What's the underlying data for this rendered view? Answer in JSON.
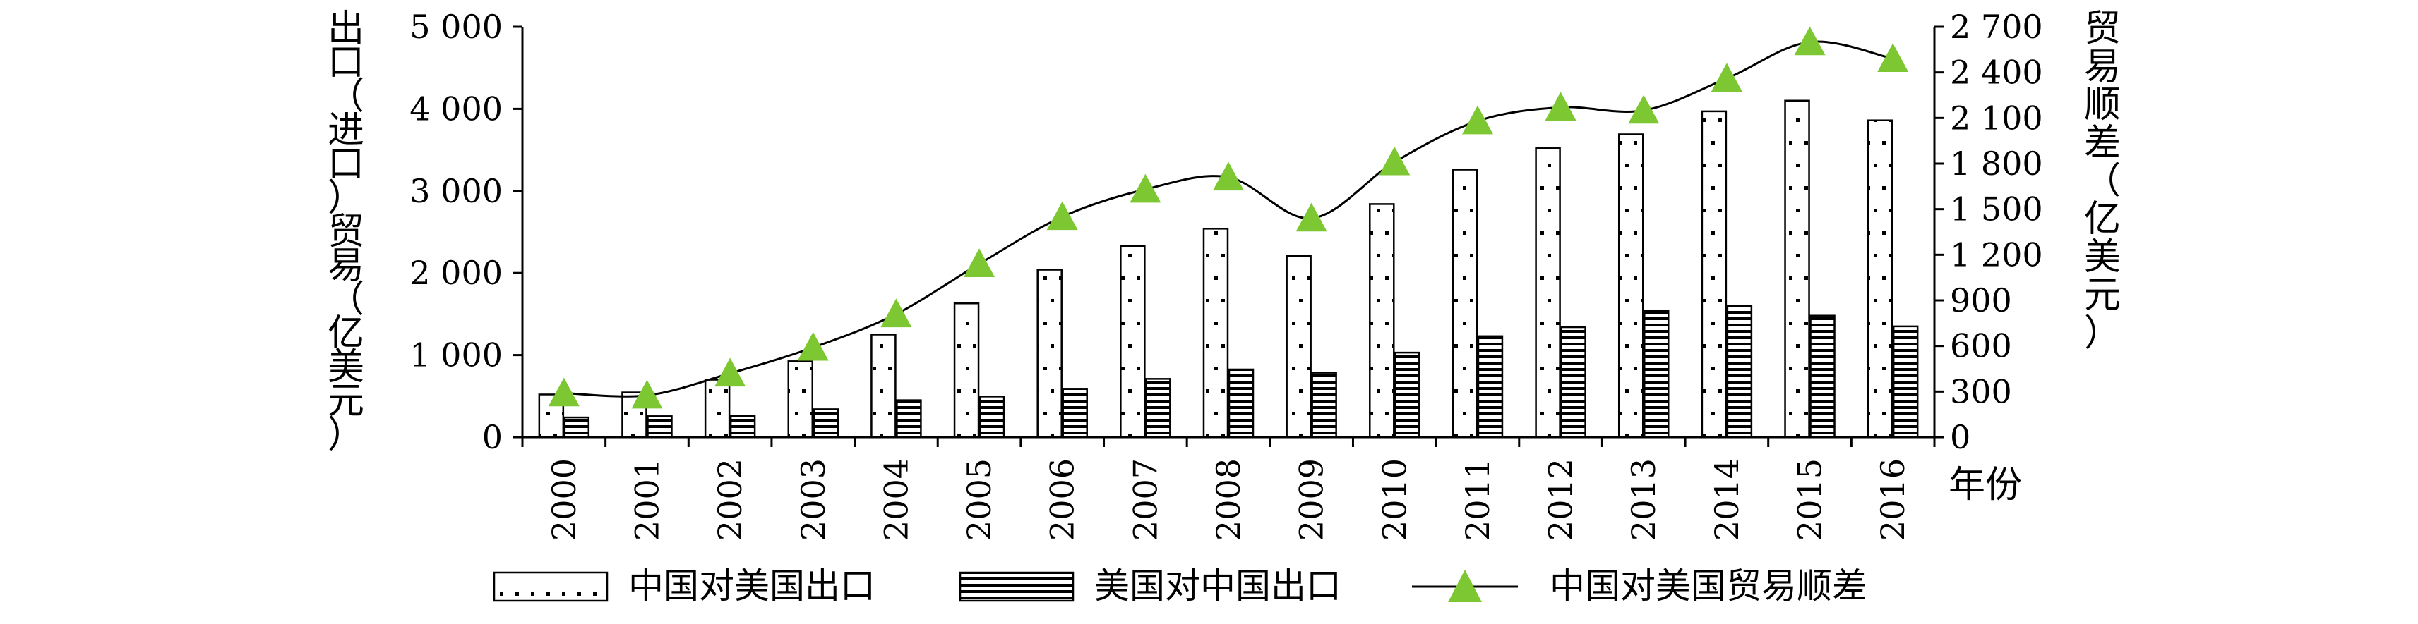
{
  "chart_data": {
    "type": "bar",
    "categories": [
      "2000",
      "2001",
      "2002",
      "2003",
      "2004",
      "2005",
      "2006",
      "2007",
      "2008",
      "2009",
      "2010",
      "2011",
      "2012",
      "2013",
      "2014",
      "2015",
      "2016"
    ],
    "series": [
      {
        "name": "中国对美国出口",
        "type": "bar",
        "axis": "left",
        "values": [
          520,
          545,
          700,
          925,
          1250,
          1630,
          2040,
          2330,
          2540,
          2210,
          2840,
          3260,
          3520,
          3690,
          3970,
          4100,
          3860
        ]
      },
      {
        "name": "美国对中国出口",
        "type": "bar",
        "axis": "left",
        "values": [
          240,
          255,
          260,
          340,
          450,
          495,
          590,
          710,
          825,
          785,
          1030,
          1230,
          1340,
          1540,
          1600,
          1480,
          1350
        ]
      },
      {
        "name": "中国对美国贸易顺差",
        "type": "line",
        "axis": "right",
        "values": [
          290,
          275,
          420,
          590,
          810,
          1140,
          1450,
          1630,
          1710,
          1440,
          1810,
          2080,
          2170,
          2150,
          2360,
          2600,
          2490
        ]
      }
    ],
    "left_axis": {
      "label_chars": [
        "出",
        "口",
        "（",
        "进",
        "口",
        "）",
        "贸",
        "易",
        "（",
        "亿",
        "美",
        "元",
        "）"
      ],
      "range": [
        0,
        5000
      ],
      "ticks": [
        "0",
        "1 000",
        "2 000",
        "3 000",
        "4 000",
        "5 000"
      ]
    },
    "right_axis": {
      "label_chars": [
        "贸",
        "易",
        "顺",
        "差",
        "（",
        "亿",
        "美",
        "元",
        "）"
      ],
      "range": [
        0,
        2700
      ],
      "ticks": [
        "0",
        "300",
        "600",
        "900",
        "1 200",
        "1 500",
        "1 800",
        "2 100",
        "2 400",
        "2 700"
      ]
    },
    "xlabel": "年份",
    "legend_position": "bottom",
    "colors": {
      "marker": "#7DC832",
      "line": "#000000",
      "bar_fill": "#ffffff",
      "hatch": "#000000"
    }
  }
}
